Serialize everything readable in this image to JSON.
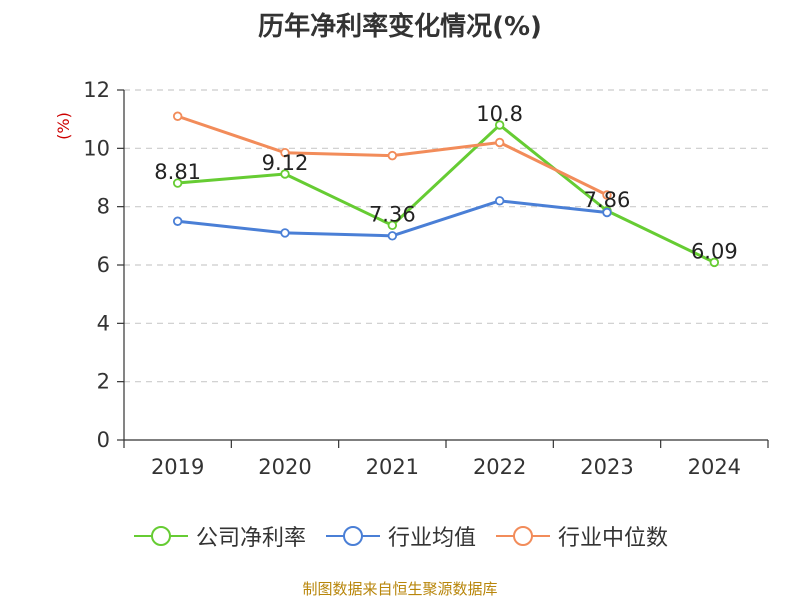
{
  "title": "历年净利率变化情况(%)",
  "source": "制图数据来自恒生聚源数据库",
  "legend": [
    "公司净利率",
    "行业均值",
    "行业中位数"
  ],
  "chart_data": {
    "type": "line",
    "categories": [
      "2019",
      "2020",
      "2021",
      "2022",
      "2023",
      "2024"
    ],
    "ylabel": "(%)",
    "ylim": [
      0,
      12
    ],
    "yticks": [
      0,
      2,
      4,
      6,
      8,
      10,
      12
    ],
    "grid": true,
    "legend_position": "bottom",
    "series": [
      {
        "name": "公司净利率",
        "color": "#66cc33",
        "values": [
          8.81,
          9.12,
          7.36,
          10.8,
          7.86,
          6.09
        ],
        "labels": [
          "8.81",
          "9.12",
          "7.36",
          "10.8",
          "7.86",
          "6.09"
        ]
      },
      {
        "name": "行业均值",
        "color": "#4a7fd6",
        "values": [
          7.5,
          7.1,
          7.0,
          8.2,
          7.8,
          null
        ]
      },
      {
        "name": "行业中位数",
        "color": "#f28c5a",
        "values": [
          11.1,
          9.85,
          9.75,
          10.2,
          8.4,
          null
        ]
      }
    ]
  }
}
